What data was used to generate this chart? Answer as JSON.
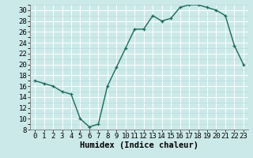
{
  "x": [
    0,
    1,
    2,
    3,
    4,
    5,
    6,
    7,
    8,
    9,
    10,
    11,
    12,
    13,
    14,
    15,
    16,
    17,
    18,
    19,
    20,
    21,
    22,
    23
  ],
  "y": [
    17,
    16.5,
    16,
    15,
    14.5,
    10,
    8.5,
    9,
    16,
    19.5,
    23,
    26.5,
    26.5,
    29,
    28,
    28.5,
    30.5,
    31,
    31,
    30.5,
    30,
    29,
    23.5,
    20
  ],
  "line_color": "#1a6b5a",
  "marker": "+",
  "bg_color": "#cce9e9",
  "grid_major_color": "#ffffff",
  "grid_minor_color": "#b8d8d8",
  "xlabel": "Humidex (Indice chaleur)",
  "ylim": [
    8,
    31
  ],
  "xlim": [
    -0.5,
    23.5
  ],
  "yticks": [
    8,
    10,
    12,
    14,
    16,
    18,
    20,
    22,
    24,
    26,
    28,
    30
  ],
  "xticks": [
    0,
    1,
    2,
    3,
    4,
    5,
    6,
    7,
    8,
    9,
    10,
    11,
    12,
    13,
    14,
    15,
    16,
    17,
    18,
    19,
    20,
    21,
    22,
    23
  ],
  "xlabel_fontsize": 7.5,
  "tick_fontsize": 6.5,
  "line_width": 1.0,
  "marker_size": 3.5,
  "spine_color": "#666666"
}
